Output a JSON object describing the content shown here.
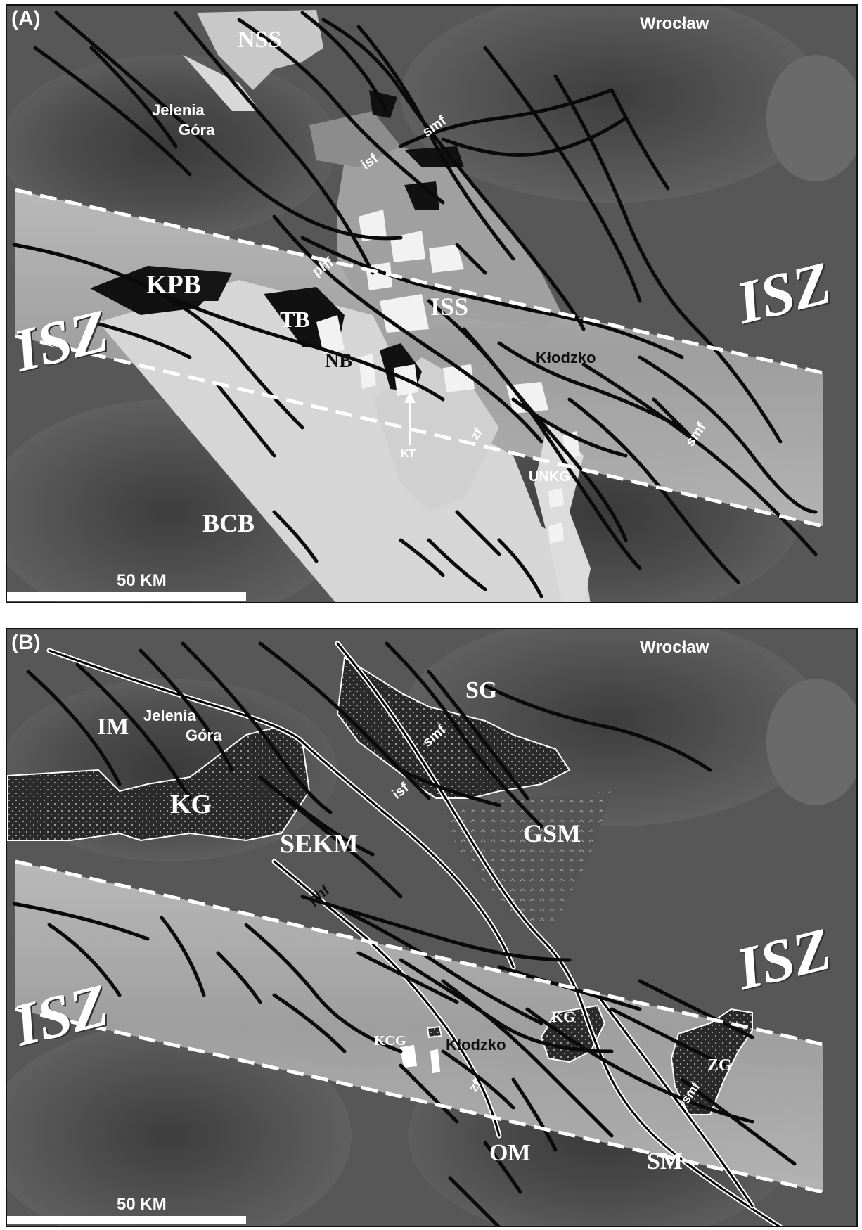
{
  "panel_a": {
    "tag": "(A)",
    "labels": {
      "city": "Wrocław",
      "jelenia": "Jelenia",
      "gora": "Góra",
      "nss": "NSS",
      "smf_top": "smf",
      "isf": "isf",
      "kpb": "KPB",
      "tb": "TB",
      "phf": "phf",
      "iss": "ISS",
      "nb": "NB",
      "kt": "KT",
      "klodzko": "Kłodzko",
      "zf": "zf",
      "unkg": "UNKG",
      "smf_right": "smf",
      "bcb": "BCB",
      "isz_left": "ISZ",
      "isz_right": "ISZ"
    },
    "scale": "50 KM"
  },
  "panel_b": {
    "tag": "(B)",
    "labels": {
      "city": "Wrocław",
      "im": "IM",
      "jelenia": "Jelenia",
      "gora": "Góra",
      "sg": "SG",
      "smf_top": "smf",
      "kg_left": "KG",
      "isf": "isf",
      "gsm": "GSM",
      "sekm": "SEKM",
      "phf": "phf",
      "kcg": "KCG",
      "klodzko": "Kłodzko",
      "kg_mid": "KG",
      "zf": "zf",
      "zg": "ZG",
      "smf_right": "smf",
      "om": "OM",
      "sm": "SM",
      "isz_left": "ISZ",
      "isz_right": "ISZ"
    },
    "scale": "50 KM"
  },
  "colors": {
    "background_dark": "#4a4a4a",
    "band_light": "#b8b8b8",
    "basin_light": "#d8d8d8",
    "block_black": "#111111",
    "fault_black": "#0a0a0a",
    "dashed_white": "#ffffff"
  }
}
